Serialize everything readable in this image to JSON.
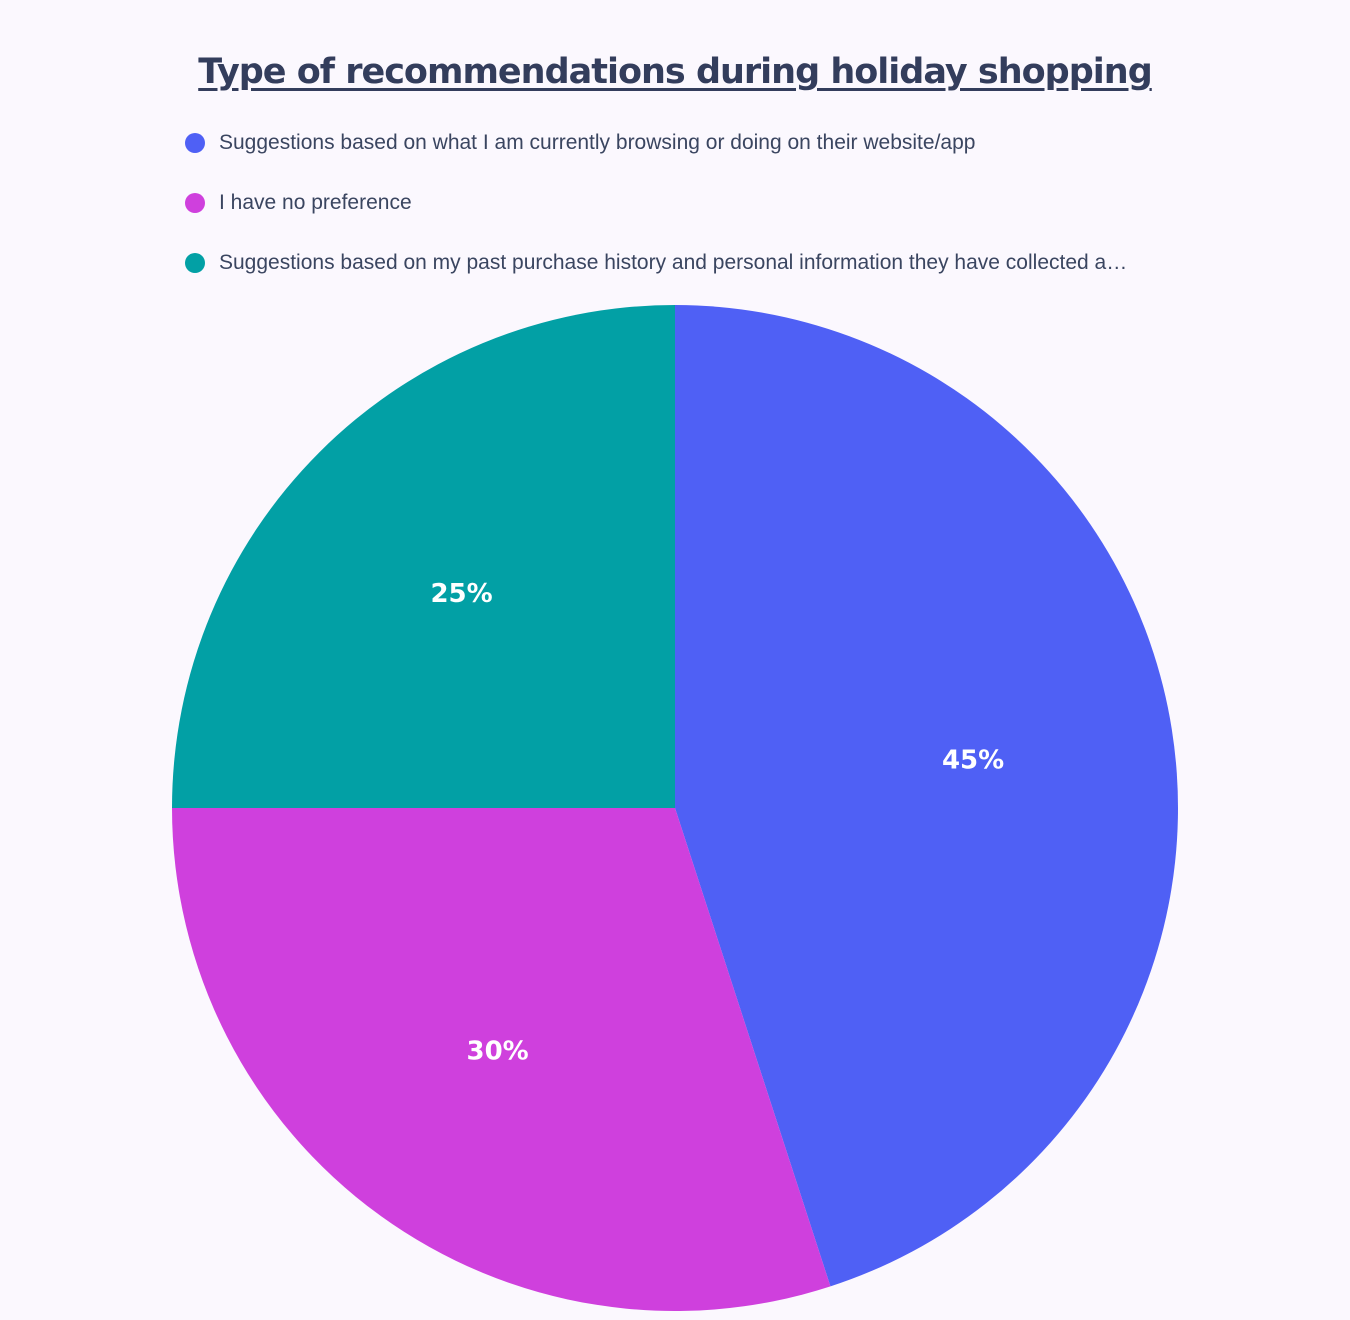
{
  "chart_data": {
    "type": "pie",
    "title": "Type of recommendations during holiday shopping",
    "categories": [
      "Suggestions based on what I am currently browsing or doing on their website/app",
      "I have no preference",
      "Suggestions based on my past purchase history and personal information they have collected a…"
    ],
    "values": [
      45,
      30,
      25
    ],
    "value_labels": [
      "45%",
      "30%",
      "25%"
    ],
    "colors": [
      "#4f60f5",
      "#cf40dd",
      "#02a0a5"
    ],
    "legend_placement": "top"
  }
}
